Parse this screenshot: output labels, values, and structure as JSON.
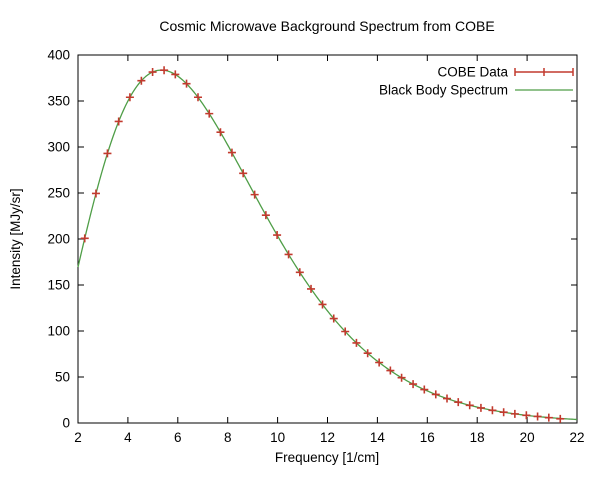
{
  "figure": {
    "background": "#ffffff",
    "border_color": "#000000",
    "text_color": "#000000"
  },
  "chart_data": {
    "type": "line",
    "title": "Cosmic Microwave Background Spectrum from COBE",
    "xlabel": "Frequency [1/cm]",
    "ylabel": "Intensity [MJy/sr]",
    "xlim": [
      2,
      22
    ],
    "ylim": [
      0,
      400
    ],
    "xticks": [
      2,
      4,
      6,
      8,
      10,
      12,
      14,
      16,
      18,
      20,
      22
    ],
    "yticks": [
      0,
      50,
      100,
      150,
      200,
      250,
      300,
      350,
      400
    ],
    "grid": false,
    "legend_position": "top-right-inside",
    "series": [
      {
        "name": "COBE Data",
        "type": "points-with-errorbars",
        "marker": "plus",
        "color": "#c23a2e",
        "x": [
          2.27,
          2.72,
          3.18,
          3.63,
          4.08,
          4.54,
          4.99,
          5.45,
          5.9,
          6.35,
          6.81,
          7.26,
          7.71,
          8.17,
          8.62,
          9.08,
          9.53,
          9.98,
          10.44,
          10.89,
          11.34,
          11.8,
          12.25,
          12.71,
          13.16,
          13.61,
          14.07,
          14.52,
          14.97,
          15.43,
          15.88,
          16.34,
          16.79,
          17.24,
          17.7,
          18.15,
          18.61,
          19.06,
          19.51,
          19.97,
          20.42,
          20.87,
          21.33
        ],
        "y": [
          200.723,
          249.508,
          293.024,
          327.77,
          354.081,
          372.079,
          381.493,
          383.478,
          378.901,
          368.833,
          354.063,
          336.278,
          316.076,
          293.924,
          271.432,
          248.239,
          225.94,
          204.327,
          183.262,
          163.83,
          145.75,
          128.835,
          113.568,
          99.451,
          87.036,
          75.876,
          65.766,
          57.008,
          49.223,
          42.267,
          36.352,
          31.062,
          26.58,
          22.644,
          19.255,
          16.391,
          13.811,
          11.716,
          9.921,
          8.364,
          7.087,
          5.801,
          4.523
        ]
      },
      {
        "name": "Black Body Spectrum",
        "type": "function-line",
        "color": "#4f9e47",
        "formula": "I(v) = 39.729 * v^3 / (exp(0.52802 * v) - 1)",
        "amplitude": 39.729,
        "coefficient": 0.52802,
        "x_start": 2.0,
        "x_end": 22.0
      }
    ]
  }
}
